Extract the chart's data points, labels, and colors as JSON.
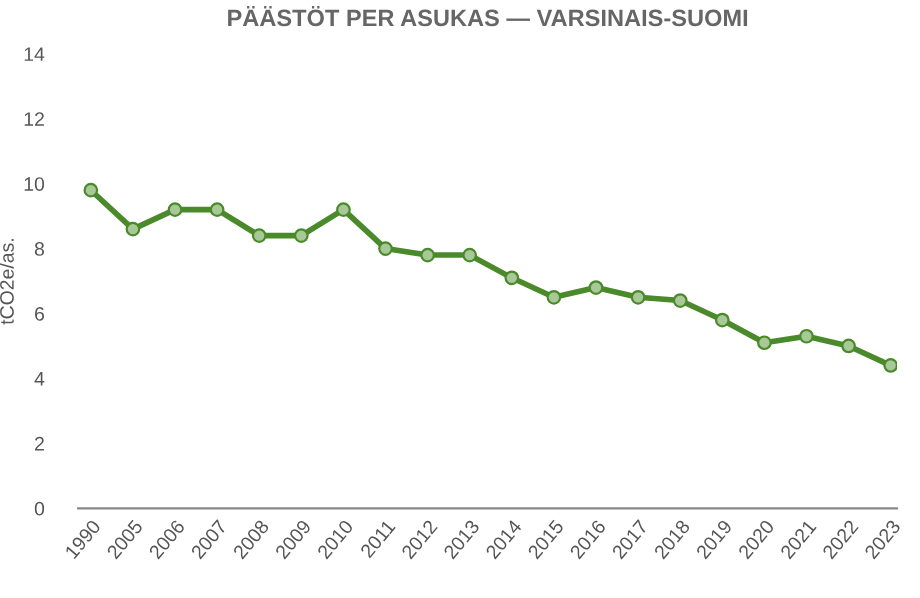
{
  "chart_data": {
    "type": "line",
    "title": "PÄÄSTÖT PER ASUKAS — VARSINAIS-SUOMI",
    "ylabel": "tCO2e/as.",
    "categories": [
      "1990",
      "2005",
      "2006",
      "2007",
      "2008",
      "2009",
      "2010",
      "2011",
      "2012",
      "2013",
      "2014",
      "2015",
      "2016",
      "2017",
      "2018",
      "2019",
      "2020",
      "2021",
      "2022",
      "2023"
    ],
    "series": [
      {
        "color": "#4a8a2a",
        "values": [
          9.8,
          8.6,
          9.2,
          9.2,
          8.4,
          8.4,
          9.2,
          8.0,
          7.8,
          7.8,
          7.1,
          6.5,
          6.8,
          6.5,
          6.4,
          5.8,
          5.1,
          5.3,
          5.0,
          4.4
        ]
      }
    ],
    "ylim": [
      0,
      14
    ],
    "yticks": [
      0,
      2,
      4,
      6,
      8,
      10,
      12,
      14
    ],
    "grid": false,
    "legend": false,
    "marker": "circle",
    "line_style": "solid"
  }
}
